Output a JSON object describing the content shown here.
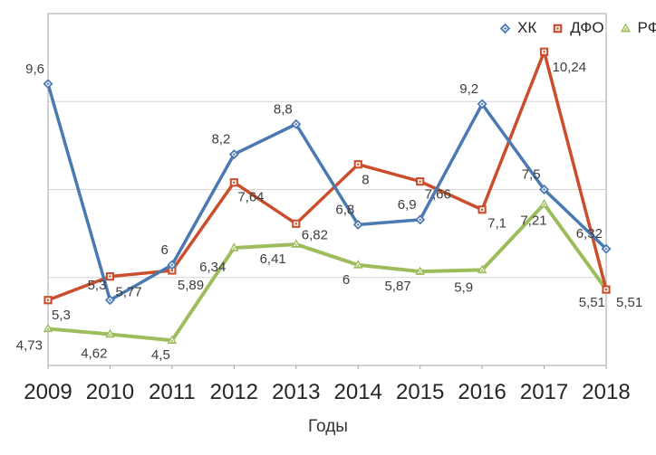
{
  "chart_data": {
    "type": "line",
    "x": [
      "2009",
      "2010",
      "2011",
      "2012",
      "2013",
      "2014",
      "2015",
      "2016",
      "2017",
      "2018"
    ],
    "xlabel": "Годы",
    "ylim": [
      4,
      11
    ],
    "gridlines": [
      5.75,
      7.5,
      9.25
    ],
    "grid": true,
    "legend_position": "top-right",
    "axis_color": "#a6a6a6",
    "grid_color": "#d6d6d6",
    "label_color": "#3d3d3d",
    "tick_label_color": "#262626",
    "series": [
      {
        "name": "ХК",
        "marker": "diamond",
        "color": "#4b79b2",
        "values": [
          9.6,
          5.3,
          6,
          8.2,
          8.8,
          6.8,
          6.9,
          9.2,
          7.5,
          6.32
        ],
        "labels": [
          "9,6",
          "5,3",
          "6",
          "8,2",
          "8,8",
          "6,8",
          "6,9",
          "9,2",
          "7,5",
          "6,32"
        ]
      },
      {
        "name": "ДФО",
        "marker": "square",
        "color": "#cb4e2c",
        "values": [
          5.3,
          5.77,
          5.89,
          7.64,
          6.82,
          8,
          7.66,
          7.1,
          10.24,
          5.51
        ],
        "labels": [
          "5,3",
          "5,77",
          "5,89",
          "7,64",
          "6,82",
          "8",
          "7,66",
          "7,1",
          "10,24",
          "5,51"
        ]
      },
      {
        "name": "РФ",
        "marker": "triangle-up",
        "color": "#9dbd5d",
        "values": [
          4.73,
          4.62,
          4.5,
          6.34,
          6.41,
          6,
          5.87,
          5.9,
          7.21,
          5.51
        ],
        "labels": [
          "4,73",
          "4,62",
          "4,5",
          "6,34",
          "6,41",
          "6",
          "5,87",
          "5,9",
          "7,21",
          "5,51"
        ]
      }
    ]
  }
}
